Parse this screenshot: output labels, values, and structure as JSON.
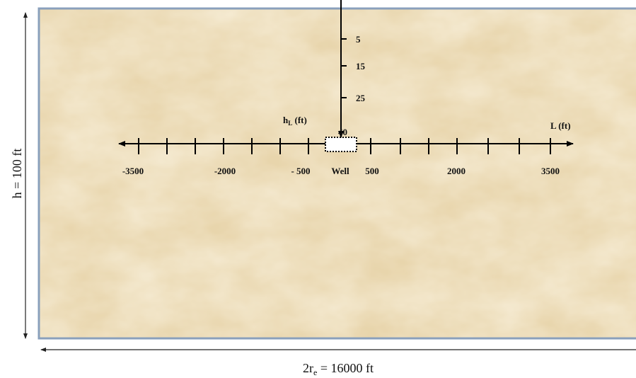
{
  "left_dimension": {
    "text": "h = 100 ft"
  },
  "bottom_dimension": {
    "main": "2r",
    "sub": "e",
    "rest": " = 16000 ft"
  },
  "vertical_axis": {
    "label": {
      "main": "h",
      "sub": "L",
      "rest": " (ft)"
    },
    "ticks": [
      "5",
      "15",
      "25",
      "40"
    ]
  },
  "horizontal_axis": {
    "label": "L (ft)",
    "ticks": [
      "-3500",
      "-2000",
      "- 500",
      "Well",
      "500",
      "2000",
      "3500"
    ]
  }
}
